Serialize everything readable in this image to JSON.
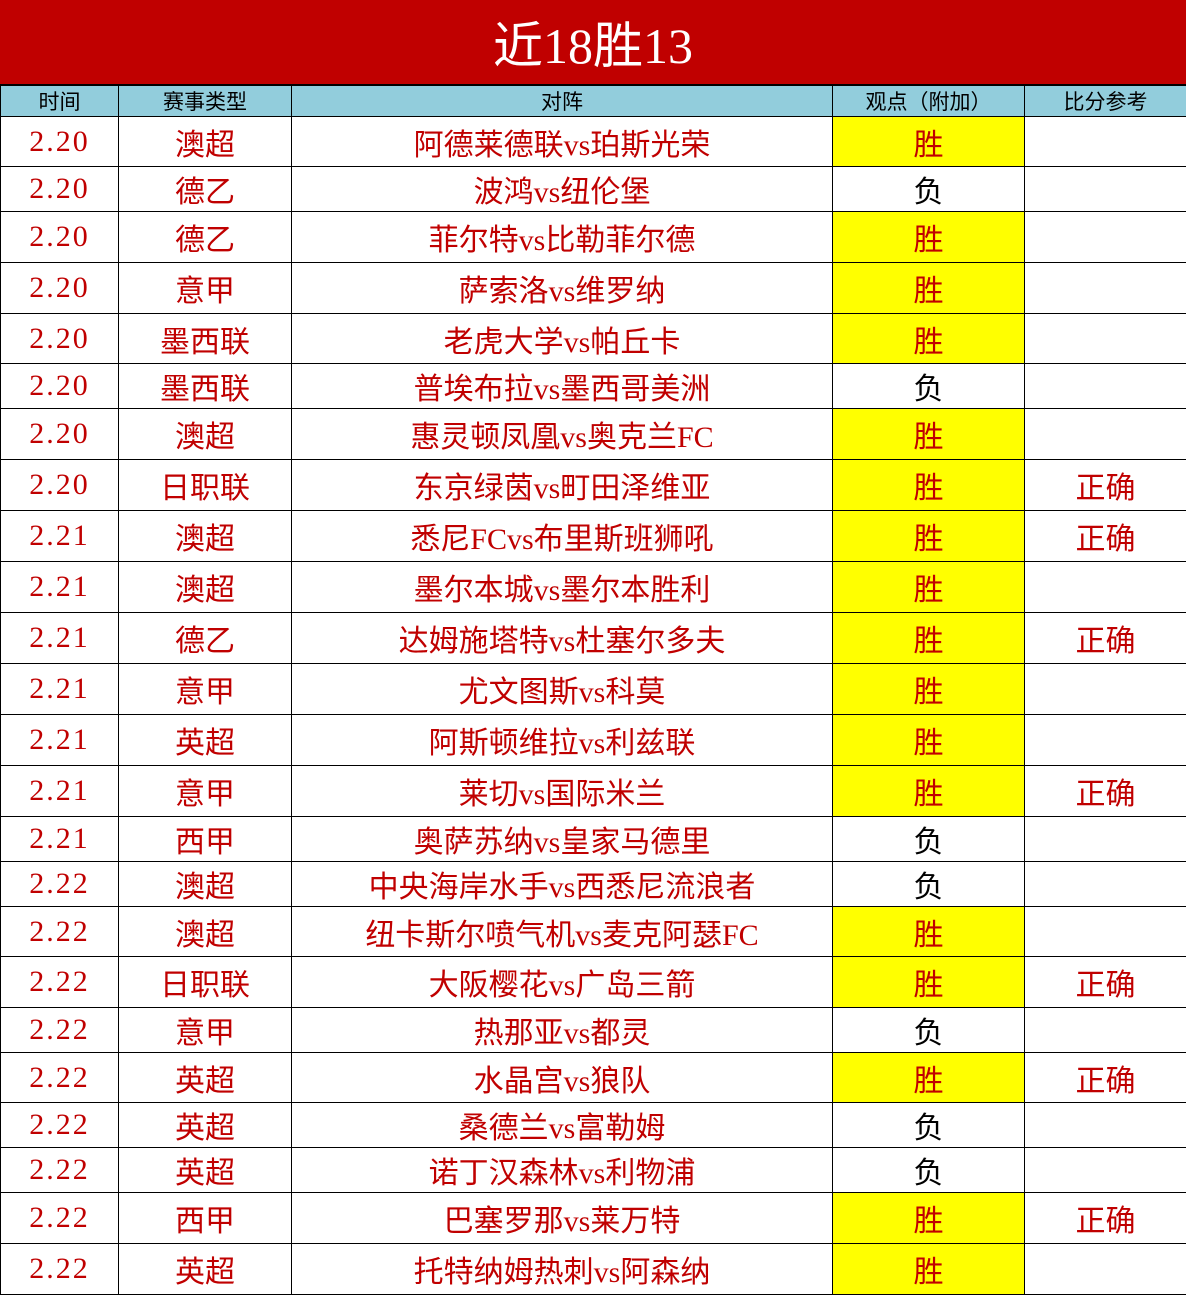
{
  "title": "近18胜13",
  "headers": [
    "时间",
    "赛事类型",
    "对阵",
    "观点（附加）",
    "比分参考"
  ],
  "colors": {
    "title_bg": "#c00000",
    "header_bg": "#92cddc",
    "highlight": "#ffff00",
    "text_red": "#c00000"
  },
  "rows": [
    {
      "date": "2.20",
      "league": "澳超",
      "match": "阿德莱德联vs珀斯光荣",
      "pick": "胜",
      "result": ""
    },
    {
      "date": "2.20",
      "league": "德乙",
      "match": "波鸿vs纽伦堡",
      "pick": "负",
      "result": ""
    },
    {
      "date": "2.20",
      "league": "德乙",
      "match": "菲尔特vs比勒菲尔德",
      "pick": "胜",
      "result": ""
    },
    {
      "date": "2.20",
      "league": "意甲",
      "match": "萨索洛vs维罗纳",
      "pick": "胜",
      "result": ""
    },
    {
      "date": "2.20",
      "league": "墨西联",
      "match": "老虎大学vs帕丘卡",
      "pick": "胜",
      "result": ""
    },
    {
      "date": "2.20",
      "league": "墨西联",
      "match": "普埃布拉vs墨西哥美洲",
      "pick": "负",
      "result": ""
    },
    {
      "date": "2.20",
      "league": "澳超",
      "match": "惠灵顿凤凰vs奥克兰FC",
      "pick": "胜",
      "result": ""
    },
    {
      "date": "2.20",
      "league": "日职联",
      "match": "东京绿茵vs町田泽维亚",
      "pick": "胜",
      "result": "正确"
    },
    {
      "date": "2.21",
      "league": "澳超",
      "match": "悉尼FCvs布里斯班狮吼",
      "pick": "胜",
      "result": "正确"
    },
    {
      "date": "2.21",
      "league": "澳超",
      "match": "墨尔本城vs墨尔本胜利",
      "pick": "胜",
      "result": ""
    },
    {
      "date": "2.21",
      "league": "德乙",
      "match": "达姆施塔特vs杜塞尔多夫",
      "pick": "胜",
      "result": "正确"
    },
    {
      "date": "2.21",
      "league": "意甲",
      "match": "尤文图斯vs科莫",
      "pick": "胜",
      "result": ""
    },
    {
      "date": "2.21",
      "league": "英超",
      "match": "阿斯顿维拉vs利兹联",
      "pick": "胜",
      "result": ""
    },
    {
      "date": "2.21",
      "league": "意甲",
      "match": "莱切vs国际米兰",
      "pick": "胜",
      "result": "正确"
    },
    {
      "date": "2.21",
      "league": "西甲",
      "match": "奥萨苏纳vs皇家马德里",
      "pick": "负",
      "result": ""
    },
    {
      "date": "2.22",
      "league": "澳超",
      "match": "中央海岸水手vs西悉尼流浪者",
      "pick": "负",
      "result": ""
    },
    {
      "date": "2.22",
      "league": "澳超",
      "match": "纽卡斯尔喷气机vs麦克阿瑟FC",
      "pick": "胜",
      "result": ""
    },
    {
      "date": "2.22",
      "league": "日职联",
      "match": "大阪樱花vs广岛三箭",
      "pick": "胜",
      "result": "正确"
    },
    {
      "date": "2.22",
      "league": "意甲",
      "match": "热那亚vs都灵",
      "pick": "负",
      "result": ""
    },
    {
      "date": "2.22",
      "league": "英超",
      "match": "水晶宫vs狼队",
      "pick": "胜",
      "result": "正确"
    },
    {
      "date": "2.22",
      "league": "英超",
      "match": "桑德兰vs富勒姆",
      "pick": "负",
      "result": ""
    },
    {
      "date": "2.22",
      "league": "英超",
      "match": "诺丁汉森林vs利物浦",
      "pick": "负",
      "result": ""
    },
    {
      "date": "2.22",
      "league": "西甲",
      "match": "巴塞罗那vs莱万特",
      "pick": "胜",
      "result": "正确"
    },
    {
      "date": "2.22",
      "league": "英超",
      "match": "托特纳姆热刺vs阿森纳",
      "pick": "胜",
      "result": ""
    }
  ]
}
